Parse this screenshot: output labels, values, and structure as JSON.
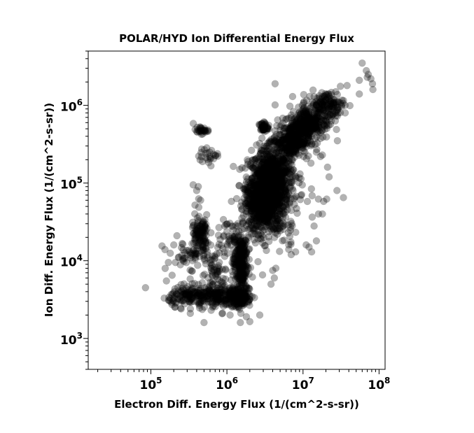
{
  "chart_data": {
    "type": "scatter",
    "title": "POLAR/HYD  Ion Differential Energy Flux",
    "xlabel": "Electron Diff. Energy Flux (1/(cm^2-s-sr))",
    "ylabel": "Ion Diff. Energy Flux (1/(cm^2-s-sr))",
    "xscale": "log",
    "yscale": "log",
    "xlim": [
      15000,
      120000000
    ],
    "ylim": [
      400,
      5000000
    ],
    "grid": false,
    "x_ticks": [
      {
        "value": 100000,
        "base": "10",
        "exp": "5"
      },
      {
        "value": 1000000,
        "base": "10",
        "exp": "6"
      },
      {
        "value": 10000000,
        "base": "10",
        "exp": "7"
      },
      {
        "value": 100000000,
        "base": "10",
        "exp": "8"
      }
    ],
    "y_ticks": [
      {
        "value": 1000,
        "base": "10",
        "exp": "3"
      },
      {
        "value": 10000,
        "base": "10",
        "exp": "4"
      },
      {
        "value": 100000,
        "base": "10",
        "exp": "5"
      },
      {
        "value": 1000000,
        "base": "10",
        "exp": "6"
      }
    ],
    "colors": {
      "marker": "#000000"
    },
    "clusters": [
      {
        "center": [
          3500000,
          80000
        ],
        "spread": [
          0.22,
          0.45
        ],
        "count": 900
      },
      {
        "center": [
          2500000,
          55000
        ],
        "spread": [
          0.15,
          0.25
        ],
        "count": 250
      },
      {
        "center": [
          4500000,
          130000
        ],
        "spread": [
          0.18,
          0.25
        ],
        "count": 200
      },
      {
        "center": [
          7000000,
          350000
        ],
        "spread": [
          0.2,
          0.18
        ],
        "count": 300
      },
      {
        "center": [
          12000000,
          600000
        ],
        "spread": [
          0.22,
          0.18
        ],
        "count": 250
      },
      {
        "center": [
          20000000,
          1000000
        ],
        "spread": [
          0.2,
          0.15
        ],
        "count": 150
      },
      {
        "center": [
          3000000,
          520000
        ],
        "spread": [
          0.05,
          0.05
        ],
        "count": 40
      },
      {
        "center": [
          450000,
          480000
        ],
        "spread": [
          0.08,
          0.04
        ],
        "count": 30
      },
      {
        "center": [
          600000,
          220000
        ],
        "spread": [
          0.12,
          0.08
        ],
        "count": 25
      },
      {
        "center": [
          1500000,
          10000
        ],
        "spread": [
          0.08,
          0.35
        ],
        "count": 250
      },
      {
        "center": [
          1500000,
          3500
        ],
        "spread": [
          0.12,
          0.12
        ],
        "count": 150
      },
      {
        "center": [
          700000,
          3500
        ],
        "spread": [
          0.25,
          0.12
        ],
        "count": 200
      },
      {
        "center": [
          300000,
          3500
        ],
        "spread": [
          0.2,
          0.1
        ],
        "count": 100
      },
      {
        "center": [
          450000,
          20000
        ],
        "spread": [
          0.1,
          0.25
        ],
        "count": 120
      },
      {
        "center": [
          700000,
          8000
        ],
        "spread": [
          0.2,
          0.2
        ],
        "count": 60
      },
      {
        "center": [
          1000000,
          20000
        ],
        "spread": [
          0.15,
          0.15
        ],
        "count": 40
      },
      {
        "center": [
          8000000,
          80000
        ],
        "spread": [
          0.3,
          0.4
        ],
        "count": 40
      },
      {
        "center": [
          5000000,
          25000
        ],
        "spread": [
          0.3,
          0.2
        ],
        "count": 30
      },
      {
        "center": [
          300000,
          12000
        ],
        "spread": [
          0.2,
          0.15
        ],
        "count": 40
      }
    ],
    "outliers": [
      [
        85000,
        4500
      ],
      [
        150000,
        3300
      ],
      [
        140000,
        15500
      ],
      [
        160000,
        5500
      ],
      [
        190000,
        6500
      ],
      [
        170000,
        9500
      ],
      [
        200000,
        16000
      ],
      [
        210000,
        9500
      ],
      [
        220000,
        21000
      ],
      [
        180000,
        12500
      ],
      [
        230000,
        11000
      ],
      [
        360000,
        95000
      ],
      [
        420000,
        90000
      ],
      [
        400000,
        80000
      ],
      [
        450000,
        60000
      ],
      [
        380000,
        52000
      ],
      [
        4300000,
        1900000
      ],
      [
        7300000,
        1300000
      ],
      [
        9800000,
        1000000
      ],
      [
        11000000,
        420000
      ],
      [
        22000000,
        120000
      ],
      [
        28000000,
        80000
      ],
      [
        34000000,
        65000
      ],
      [
        18000000,
        40000
      ],
      [
        16000000,
        40000
      ],
      [
        14000000,
        28000
      ],
      [
        15000000,
        18000
      ],
      [
        11000000,
        16000
      ],
      [
        12000000,
        15000
      ],
      [
        13000000,
        13000
      ],
      [
        8000000,
        13000
      ],
      [
        6500000,
        14000
      ],
      [
        6500000,
        16000
      ],
      [
        7000000,
        12000
      ],
      [
        27000000,
        1500000
      ],
      [
        38000000,
        1800000
      ],
      [
        55000000,
        1400000
      ],
      [
        55000000,
        2100000
      ],
      [
        60000000,
        3500000
      ],
      [
        68000000,
        2800000
      ],
      [
        72000000,
        2500000
      ],
      [
        78000000,
        2200000
      ],
      [
        82000000,
        1900000
      ],
      [
        83000000,
        1600000
      ],
      [
        70000000,
        2300000
      ],
      [
        29000000,
        800000
      ],
      [
        21000000,
        160000
      ],
      [
        15000000,
        250000
      ],
      [
        17000000,
        220000
      ],
      [
        2000000,
        1650
      ],
      [
        1500000,
        1600
      ],
      [
        500000,
        1600
      ],
      [
        3800000,
        5000
      ],
      [
        4000000,
        7500
      ],
      [
        4200000,
        6000
      ],
      [
        1800000,
        1900
      ],
      [
        1100000,
        2000
      ],
      [
        250000,
        2400
      ],
      [
        330000,
        2100
      ],
      [
        620000,
        2300
      ],
      [
        900000,
        2600
      ],
      [
        2700000,
        2000
      ],
      [
        4400000,
        8000
      ]
    ]
  }
}
